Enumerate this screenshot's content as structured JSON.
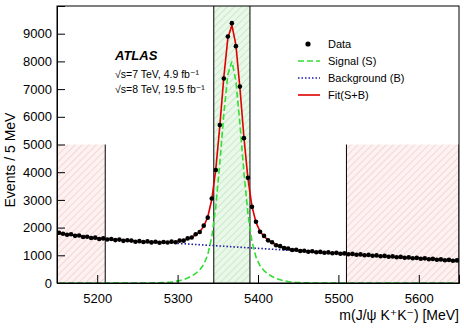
{
  "chart_data": {
    "type": "scatter",
    "x_label": "m(J/ψ K⁺K⁻) [MeV]",
    "y_label": "Events / 5 MeV",
    "annotations": [
      "ATLAS",
      "√s=7 TeV, 4.9 fb⁻¹",
      "√s=8 TeV, 19.5 fb⁻¹"
    ],
    "xlim": [
      5150,
      5650
    ],
    "xticks": [
      5200,
      5300,
      5400,
      5500,
      5600
    ],
    "ylim": [
      0,
      10000
    ],
    "yticks": [
      0,
      1000,
      2000,
      3000,
      4000,
      5000,
      6000,
      7000,
      8000,
      9000
    ],
    "legend": "top-right",
    "signal_window": [
      5345,
      5390
    ],
    "sidebands": [
      [
        5150,
        5210
      ],
      [
        5510,
        5650
      ]
    ],
    "sideband_height": 5000,
    "x": [
      5152.5,
      5157.5,
      5162.5,
      5167.5,
      5172.5,
      5177.5,
      5182.5,
      5187.5,
      5192.5,
      5197.5,
      5202.5,
      5207.5,
      5212.5,
      5217.5,
      5222.5,
      5227.5,
      5232.5,
      5237.5,
      5242.5,
      5247.5,
      5252.5,
      5257.5,
      5262.5,
      5267.5,
      5272.5,
      5277.5,
      5282.5,
      5287.5,
      5292.5,
      5297.5,
      5302.5,
      5307.5,
      5312.5,
      5317.5,
      5322.5,
      5327.5,
      5332.5,
      5337.5,
      5342.5,
      5347.5,
      5352.5,
      5357.5,
      5362.5,
      5367.5,
      5372.5,
      5377.5,
      5382.5,
      5387.5,
      5392.5,
      5397.5,
      5402.5,
      5407.5,
      5412.5,
      5417.5,
      5422.5,
      5427.5,
      5432.5,
      5437.5,
      5442.5,
      5447.5,
      5452.5,
      5457.5,
      5462.5,
      5467.5,
      5472.5,
      5477.5,
      5482.5,
      5487.5,
      5492.5,
      5497.5,
      5502.5,
      5507.5,
      5512.5,
      5517.5,
      5522.5,
      5527.5,
      5532.5,
      5537.5,
      5542.5,
      5547.5,
      5552.5,
      5557.5,
      5562.5,
      5567.5,
      5572.5,
      5577.5,
      5582.5,
      5587.5,
      5592.5,
      5597.5,
      5602.5,
      5607.5,
      5612.5,
      5617.5,
      5622.5,
      5627.5,
      5632.5,
      5637.5,
      5642.5,
      5647.5
    ],
    "series": [
      {
        "name": "Data",
        "type": "scatter",
        "marker": "circle",
        "color": "#000000",
        "values": [
          1812,
          1780,
          1741,
          1760,
          1702,
          1714,
          1660,
          1671,
          1622,
          1638,
          1589,
          1610,
          1571,
          1590,
          1548,
          1566,
          1522,
          1545,
          1530,
          1490,
          1511,
          1478,
          1502,
          1465,
          1489,
          1452,
          1480,
          1460,
          1492,
          1470,
          1530,
          1528,
          1610,
          1640,
          1760,
          1840,
          2070,
          2360,
          3050,
          4080,
          5700,
          7380,
          8900,
          9380,
          8550,
          7090,
          5230,
          3800,
          2750,
          2210,
          1850,
          1700,
          1540,
          1470,
          1365,
          1330,
          1258,
          1245,
          1190,
          1198,
          1155,
          1166,
          1130,
          1145,
          1108,
          1123,
          1090,
          1105,
          1072,
          1088,
          1055,
          1069,
          1036,
          1050,
          1019,
          1033,
          1001,
          1015,
          982,
          997,
          965,
          979,
          946,
          960,
          929,
          943,
          911,
          925,
          893,
          906,
          875,
          889,
          857,
          870,
          839,
          852,
          821,
          834,
          803,
          816
        ]
      },
      {
        "name": "Signal (S)",
        "type": "line",
        "line_style": "dashed",
        "color": "#33dd33",
        "values": [
          0,
          0,
          0,
          0,
          0,
          0,
          0,
          0,
          0,
          0,
          0,
          0,
          0,
          0,
          0,
          0,
          0,
          0,
          0,
          0,
          0,
          0,
          0,
          2,
          4,
          7,
          13,
          21,
          35,
          55,
          85,
          126,
          180,
          252,
          347,
          474,
          671,
          1020,
          1661,
          2758,
          4328,
          6104,
          7522,
          8000,
          7297,
          5756,
          3981,
          2496,
          1507,
          932,
          623,
          445,
          325,
          236,
          168,
          116,
          78,
          50,
          32,
          19,
          12,
          7,
          4,
          2,
          0,
          0,
          0,
          0,
          0,
          0,
          0,
          0,
          0,
          0,
          0,
          0,
          0,
          0,
          0,
          0,
          0,
          0,
          0,
          0,
          0,
          0,
          0,
          0,
          0,
          0,
          0,
          0,
          0,
          0,
          0,
          0,
          0,
          0,
          0,
          0
        ]
      },
      {
        "name": "Background (B)",
        "type": "line",
        "line_style": "dotted",
        "color": "#1a1aa6",
        "values": [
          1790,
          1771,
          1752,
          1734,
          1715,
          1696,
          1677,
          1658,
          1639,
          1620,
          1605,
          1594,
          1583,
          1572,
          1561,
          1550,
          1539,
          1528,
          1517,
          1506,
          1497,
          1490,
          1483,
          1476,
          1469,
          1462,
          1455,
          1448,
          1441,
          1434,
          1426,
          1417,
          1408,
          1399,
          1390,
          1381,
          1372,
          1363,
          1354,
          1345,
          1336,
          1327,
          1318,
          1309,
          1300,
          1291,
          1282,
          1273,
          1264,
          1255,
          1246,
          1237,
          1228,
          1219,
          1210,
          1201,
          1192,
          1183,
          1174,
          1165,
          1156,
          1147,
          1138,
          1129,
          1120,
          1111,
          1102,
          1093,
          1084,
          1075,
          1066,
          1057,
          1048,
          1039,
          1030,
          1021,
          1012,
          1003,
          994,
          985,
          976,
          967,
          958,
          949,
          940,
          931,
          922,
          913,
          904,
          895,
          886,
          877,
          868,
          859,
          850,
          841,
          832,
          823,
          814,
          805
        ]
      },
      {
        "name": "Fit(S+B)",
        "type": "line",
        "line_style": "solid",
        "color": "#dd0000",
        "values": [
          1790,
          1771,
          1752,
          1734,
          1715,
          1696,
          1677,
          1658,
          1639,
          1620,
          1605,
          1594,
          1583,
          1572,
          1561,
          1550,
          1539,
          1528,
          1517,
          1506,
          1497,
          1490,
          1483,
          1478,
          1473,
          1469,
          1468,
          1469,
          1476,
          1489,
          1511,
          1543,
          1588,
          1651,
          1737,
          1855,
          2043,
          2383,
          3015,
          4103,
          5664,
          7431,
          8840,
          9309,
          8597,
          7047,
          5263,
          3769,
          2771,
          2187,
          1869,
          1682,
          1553,
          1455,
          1378,
          1317,
          1270,
          1233,
          1206,
          1184,
          1168,
          1154,
          1142,
          1131,
          1120,
          1111,
          1102,
          1093,
          1084,
          1075,
          1066,
          1057,
          1048,
          1039,
          1030,
          1021,
          1012,
          1003,
          994,
          985,
          976,
          967,
          958,
          949,
          940,
          931,
          922,
          913,
          904,
          895,
          886,
          877,
          868,
          859,
          850,
          841,
          832,
          823,
          814,
          805
        ]
      }
    ]
  }
}
